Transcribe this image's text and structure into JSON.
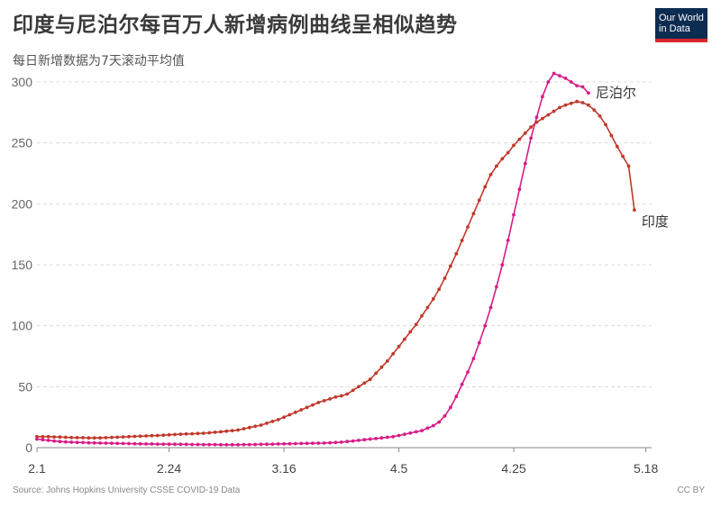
{
  "header": {
    "title": "印度与尼泊尔每百万人新增病例曲线呈相似趋势",
    "subtitle": "每日新增数据为7天滚动平均值"
  },
  "logo": {
    "line1": "Our World",
    "line2": "in Data"
  },
  "footer": {
    "source": "Source: Johns Hopkins University CSSE COVID-19 Data",
    "license": "CC BY"
  },
  "colors": {
    "india": "#c0392b",
    "nepal": "#d81b87",
    "grid": "#dddddd",
    "axis": "#888888"
  },
  "chart_data": {
    "type": "line",
    "xlim": [
      0,
      107
    ],
    "ylim": [
      0,
      300
    ],
    "x_ticks": [
      {
        "pos": 0,
        "label": "2.1"
      },
      {
        "pos": 23,
        "label": "2.24"
      },
      {
        "pos": 43,
        "label": "3.16"
      },
      {
        "pos": 63,
        "label": "4.5"
      },
      {
        "pos": 83,
        "label": "4.25"
      },
      {
        "pos": 106,
        "label": "5.18"
      }
    ],
    "y_ticks": [
      0,
      50,
      100,
      150,
      200,
      250,
      300
    ],
    "series": [
      {
        "name": "印度",
        "key": "india",
        "values": [
          9,
          9,
          9,
          8.8,
          8.7,
          8.5,
          8.3,
          8.2,
          8.1,
          8,
          8,
          8,
          8.2,
          8.4,
          8.6,
          8.8,
          9,
          9.2,
          9.4,
          9.6,
          9.8,
          10,
          10.2,
          10.5,
          10.8,
          11,
          11.2,
          11.4,
          11.6,
          11.8,
          12.2,
          12.6,
          13,
          13.5,
          14,
          14.5,
          15.5,
          16.5,
          17.5,
          18.5,
          20,
          21.5,
          23,
          25,
          27,
          29,
          31,
          33,
          35,
          37,
          38.5,
          40,
          41.5,
          42.5,
          44,
          47,
          50,
          53,
          56,
          61,
          66,
          71,
          77,
          83,
          89,
          95,
          101,
          108,
          115,
          122,
          130,
          139,
          149,
          159,
          170,
          181,
          192,
          203,
          214,
          224,
          231,
          237,
          242,
          248,
          253,
          258,
          263,
          267,
          270,
          273,
          276,
          279,
          281,
          282.5,
          284,
          283,
          281,
          277,
          272,
          265,
          256,
          247,
          239,
          231,
          195
        ]
      },
      {
        "name": "尼泊尔",
        "key": "nepal",
        "values": [
          7,
          6.5,
          6,
          5.5,
          5,
          4.7,
          4.5,
          4.3,
          4.2,
          4,
          3.9,
          3.8,
          3.7,
          3.6,
          3.5,
          3.4,
          3.3,
          3.2,
          3.1,
          3,
          3,
          2.9,
          2.9,
          2.8,
          2.8,
          2.7,
          2.7,
          2.6,
          2.6,
          2.5,
          2.5,
          2.5,
          2.4,
          2.4,
          2.4,
          2.4,
          2.5,
          2.5,
          2.6,
          2.7,
          2.8,
          2.9,
          3,
          3.1,
          3.2,
          3.3,
          3.4,
          3.5,
          3.6,
          3.7,
          3.8,
          4,
          4.2,
          4.5,
          5,
          5.5,
          6,
          6.5,
          7,
          7.5,
          8,
          8.5,
          9,
          10,
          11,
          12,
          13,
          14,
          16,
          18,
          21,
          26,
          33,
          42,
          52,
          62,
          73,
          86,
          100,
          115,
          132,
          150,
          170,
          191,
          212,
          233,
          254,
          271,
          288,
          300,
          307,
          305,
          303,
          300,
          297,
          296,
          291
        ]
      }
    ],
    "end_labels": [
      {
        "key": "nepal",
        "text": "尼泊尔"
      },
      {
        "key": "india",
        "text": "印度"
      }
    ]
  }
}
